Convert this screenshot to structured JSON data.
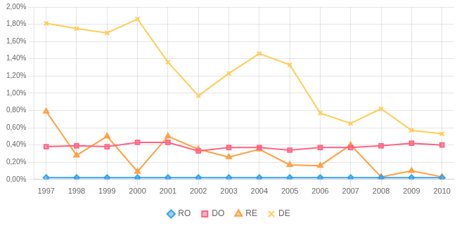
{
  "chart_data": {
    "type": "line",
    "x": [
      1997,
      1998,
      1999,
      2000,
      2001,
      2002,
      2003,
      2004,
      2005,
      2006,
      2007,
      2008,
      2009,
      2010
    ],
    "xlim": [
      1996.6,
      2010.4
    ],
    "xticks": [
      1997,
      1998,
      1999,
      2000,
      2001,
      2002,
      2003,
      2004,
      2005,
      2006,
      2007,
      2008,
      2009,
      2010
    ],
    "ylim": [
      0.0,
      0.02
    ],
    "yticks": [
      {
        "value": 0.0,
        "label": "0,00%"
      },
      {
        "value": 0.002,
        "label": "0,20%"
      },
      {
        "value": 0.004,
        "label": "0,40%"
      },
      {
        "value": 0.006,
        "label": "0,60%"
      },
      {
        "value": 0.008,
        "label": "0,80%"
      },
      {
        "value": 0.01,
        "label": "1,00%"
      },
      {
        "value": 0.012,
        "label": "1,20%"
      },
      {
        "value": 0.014,
        "label": "1,40%"
      },
      {
        "value": 0.016,
        "label": "1,60%"
      },
      {
        "value": 0.018,
        "label": "1,80%"
      },
      {
        "value": 0.02,
        "label": "2,00%"
      }
    ],
    "grid": true,
    "legend": "bottom",
    "series": [
      {
        "name": "RO",
        "marker": "diamond",
        "values": [
          0.0002,
          0.0002,
          0.0002,
          0.0002,
          0.0002,
          0.0002,
          0.0002,
          0.0002,
          0.0002,
          0.0002,
          0.0002,
          0.0002,
          0.0002,
          0.0002
        ]
      },
      {
        "name": "DO",
        "marker": "square",
        "values": [
          0.0038,
          0.0039,
          0.0038,
          0.0043,
          0.0043,
          0.0033,
          0.0037,
          0.0037,
          0.0034,
          0.0037,
          0.0037,
          0.0039,
          0.0042,
          0.004
        ]
      },
      {
        "name": "RE",
        "marker": "triangle",
        "values": [
          0.0079,
          0.0028,
          0.005,
          0.0009,
          0.005,
          0.0035,
          0.0026,
          0.0035,
          0.0017,
          0.0016,
          0.004,
          0.0003,
          0.001,
          0.0003
        ]
      },
      {
        "name": "DE",
        "marker": "x",
        "values": [
          0.0181,
          0.0175,
          0.017,
          0.0186,
          0.0136,
          0.0097,
          0.0123,
          0.0146,
          0.0133,
          0.0077,
          0.0065,
          0.0082,
          0.0057,
          0.0053
        ]
      }
    ]
  }
}
